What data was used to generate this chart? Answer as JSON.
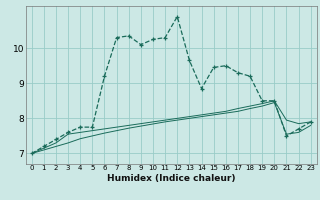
{
  "xlabel": "Humidex (Indice chaleur)",
  "background_color": "#cce8e5",
  "grid_color": "#99ccc8",
  "line_color": "#1a6b5a",
  "x_values": [
    0,
    1,
    2,
    3,
    4,
    5,
    6,
    7,
    8,
    9,
    10,
    11,
    12,
    13,
    14,
    15,
    16,
    17,
    18,
    19,
    20,
    21,
    22,
    23
  ],
  "main_y": [
    7.0,
    7.2,
    7.4,
    7.6,
    7.75,
    7.75,
    9.2,
    10.3,
    10.35,
    10.1,
    10.25,
    10.3,
    10.9,
    9.65,
    8.85,
    9.45,
    9.5,
    9.3,
    9.2,
    8.5,
    8.5,
    7.5,
    7.7,
    7.9
  ],
  "flat1_y": [
    7.0,
    7.15,
    7.3,
    7.55,
    7.6,
    7.65,
    7.7,
    7.75,
    7.8,
    7.85,
    7.9,
    7.95,
    8.0,
    8.05,
    8.1,
    8.15,
    8.2,
    8.28,
    8.35,
    8.42,
    8.5,
    7.95,
    7.85,
    7.9
  ],
  "flat2_y": [
    7.0,
    7.1,
    7.2,
    7.3,
    7.42,
    7.5,
    7.58,
    7.65,
    7.72,
    7.78,
    7.84,
    7.9,
    7.95,
    8.0,
    8.05,
    8.1,
    8.15,
    8.2,
    8.28,
    8.35,
    8.45,
    7.55,
    7.6,
    7.8
  ],
  "ylim": [
    6.7,
    11.2
  ],
  "yticks": [
    7,
    8,
    9,
    10
  ],
  "xlim": [
    -0.5,
    23.5
  ]
}
